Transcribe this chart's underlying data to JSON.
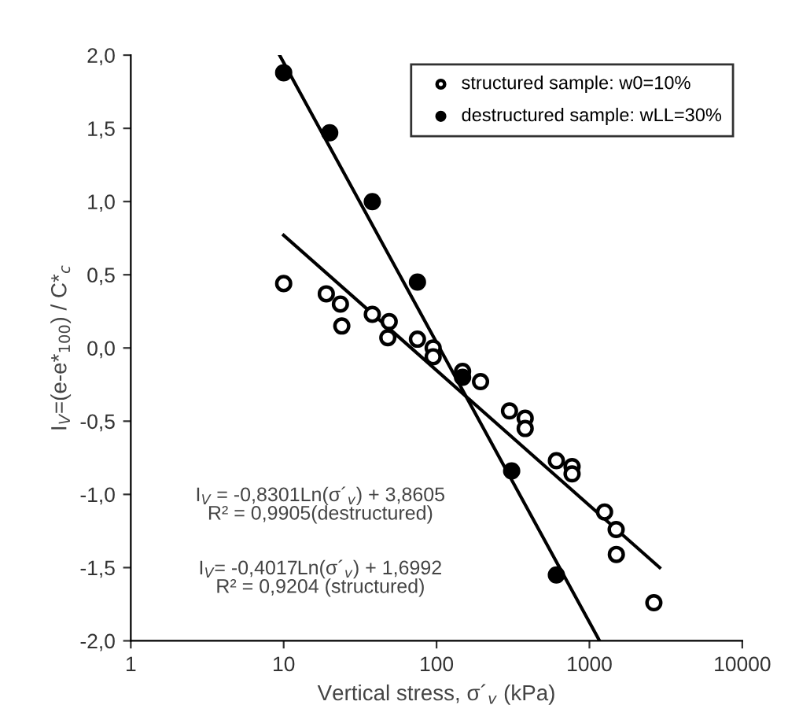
{
  "chart_data": {
    "type": "scatter",
    "xlabel": "Vertical stress, σ´$_{v}$ (kPa)",
    "ylabel": "I$_{V}$=(e-e*$_{100}$) / C*$_{c}$",
    "log": "x",
    "xlim": [
      1,
      10000
    ],
    "xticks": [
      1,
      10,
      100,
      1000,
      10000
    ],
    "ylim": [
      -2.0,
      2.0
    ],
    "yticks": [
      {
        "value": -2.0,
        "label": "-2,0"
      },
      {
        "value": -1.5,
        "label": "-1,5"
      },
      {
        "value": -1.0,
        "label": "-1,0"
      },
      {
        "value": -0.5,
        "label": "-0,5"
      },
      {
        "value": 0.0,
        "label": "0,0"
      },
      {
        "value": 0.5,
        "label": "0,5"
      },
      {
        "value": 1.0,
        "label": "1,0"
      },
      {
        "value": 1.5,
        "label": "1,5"
      },
      {
        "value": 2.0,
        "label": "2,0"
      }
    ],
    "grid": false,
    "legend": "top right",
    "marker": "circle",
    "series": [
      {
        "name": "structured sample: w0=10%",
        "color": "#ffffff",
        "x": [
          10,
          19,
          23.5,
          24,
          38,
          49,
          48,
          75,
          95,
          95,
          148,
          150,
          194,
          300,
          380,
          380,
          608,
          770,
          770,
          1256,
          1496,
          1500,
          2640
        ],
        "values": [
          0.44,
          0.37,
          0.3,
          0.15,
          0.23,
          0.18,
          0.07,
          0.06,
          0.0,
          -0.06,
          -0.16,
          null,
          -0.23,
          -0.43,
          -0.48,
          -0.55,
          -0.77,
          -0.81,
          -0.86,
          -1.12,
          -1.24,
          -1.41,
          -1.74
        ]
      },
      {
        "name": "destructured sample: wLL=30%",
        "color": "#000000",
        "x": [
          10,
          20,
          38,
          75,
          148,
          310,
          608
        ],
        "values": [
          1.88,
          1.47,
          1.0,
          0.45,
          -0.2,
          -0.84,
          -1.55
        ]
      },
      {
        "type": "line",
        "color": "#000000",
        "marker": "none",
        "x": [
          9.4,
          1165
        ],
        "values": [
          2.0,
          -2.0
        ]
      },
      {
        "type": "line",
        "color": "#000000",
        "marker": "none",
        "x": [
          10,
          2880
        ],
        "values": [
          0.77,
          -1.5
        ]
      }
    ],
    "annotations": [
      "I$_{V}$ = -0,8301Ln(σ´$_{v}$) + 3,8605\nR² = 0,9905(destructured)",
      "I$_{V}$= -0,4017Ln(σ´$_{v}$) + 1,6992\nR² = 0,9204 (structured)"
    ]
  }
}
